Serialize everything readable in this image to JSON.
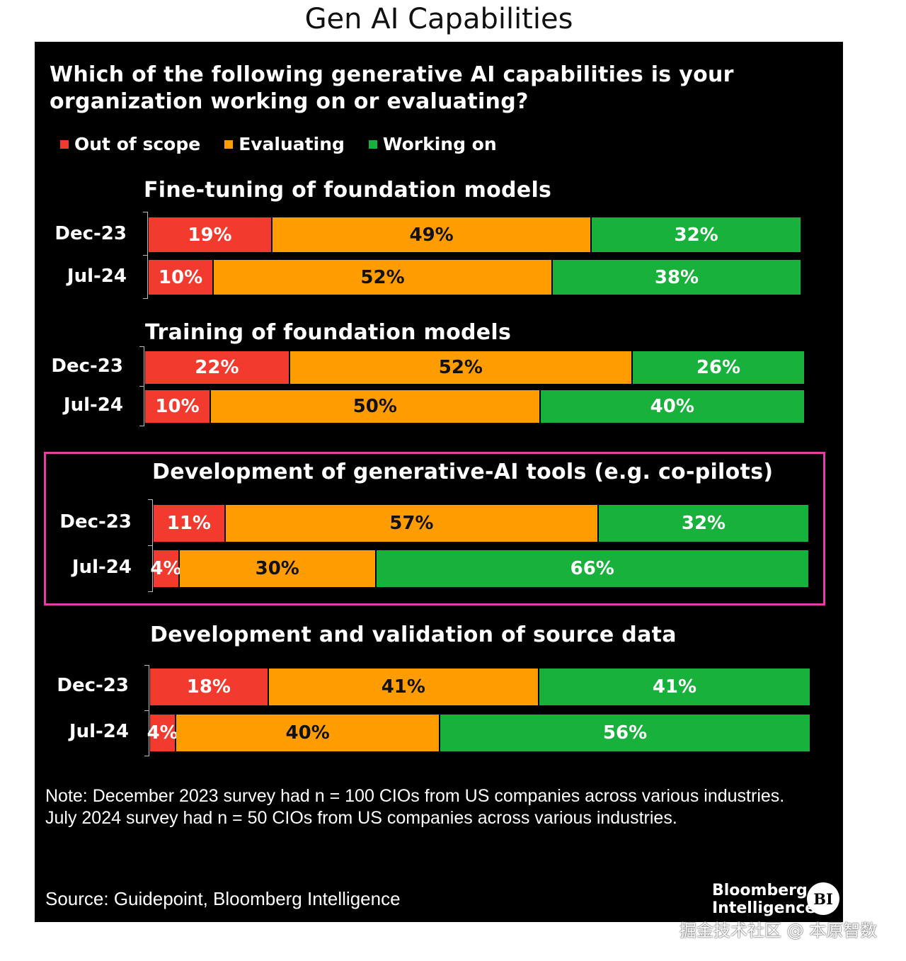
{
  "page_title": "Gen AI Capabilities",
  "question": "Which of the following generative AI capabilities is your organization working on or evaluating?",
  "legend": [
    {
      "label": "Out of scope",
      "color": "#f23a2e"
    },
    {
      "label": "Evaluating",
      "color": "#ff9d00"
    },
    {
      "label": "Working on",
      "color": "#18b13c"
    }
  ],
  "colors": {
    "out_of_scope": "#f23a2e",
    "evaluating": "#ff9d00",
    "working_on": "#18b13c",
    "highlight": "#e23da8",
    "background": "#000000"
  },
  "chart_data": {
    "type": "bar",
    "orientation": "horizontal",
    "stacked": true,
    "unit": "%",
    "xlim": [
      0,
      100
    ],
    "series_names": [
      "Out of scope",
      "Evaluating",
      "Working on"
    ],
    "groups": [
      {
        "title": "Fine-tuning of foundation models",
        "rows": [
          {
            "label": "Dec-23",
            "values": [
              19,
              49,
              32
            ],
            "labels": [
              "19%",
              "49%",
              "32%"
            ]
          },
          {
            "label": "Jul-24",
            "values": [
              10,
              52,
              38
            ],
            "labels": [
              "10%",
              "52%",
              "38%"
            ]
          }
        ]
      },
      {
        "title": "Training of foundation models",
        "rows": [
          {
            "label": "Dec-23",
            "values": [
              22,
              52,
              26
            ],
            "labels": [
              "22%",
              "52%",
              "26%"
            ]
          },
          {
            "label": "Jul-24",
            "values": [
              10,
              50,
              40
            ],
            "labels": [
              "10%",
              "50%",
              "40%"
            ]
          }
        ]
      },
      {
        "title": "Development of generative-AI tools (e.g. co-pilots)",
        "highlighted": true,
        "rows": [
          {
            "label": "Dec-23",
            "values": [
              11,
              57,
              32
            ],
            "labels": [
              "11%",
              "57%",
              "32%"
            ]
          },
          {
            "label": "Jul-24",
            "values": [
              4,
              30,
              66
            ],
            "labels": [
              "4%",
              "30%",
              "66%"
            ]
          }
        ]
      },
      {
        "title": "Development and validation of source data",
        "rows": [
          {
            "label": "Dec-23",
            "values": [
              18,
              41,
              41
            ],
            "labels": [
              "18%",
              "41%",
              "41%"
            ]
          },
          {
            "label": "Jul-24",
            "values": [
              4,
              40,
              56
            ],
            "labels": [
              "4%",
              "40%",
              "56%"
            ]
          }
        ]
      }
    ]
  },
  "note": "Note: December 2023 survey had n = 100 CIOs from US companies across various industries. July 2024 survey had n = 50 CIOs from US companies across various industries.",
  "source": "Source: Guidepoint, Bloomberg Intelligence",
  "brand": {
    "line1": "Bloomberg",
    "line2": "Intelligence",
    "badge": "BI"
  },
  "watermark": "掘金技术社区 @ 本原智数"
}
